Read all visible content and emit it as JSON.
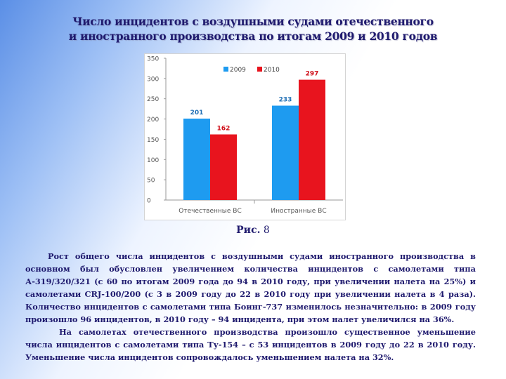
{
  "title": {
    "line1": "Число инцидентов с воздушными судами отечественного",
    "line2": "и иностранного производства по итогам 2009 и 2010 годов"
  },
  "caption": {
    "label": "Рис.",
    "number": "8"
  },
  "paragraphs": [
    "Рост общего числа инцидентов с воздушными судами иностранного производства в основном был обусловлен увеличением количества инцидентов с самолетами типа А-319/320/321 (с 60 по итогам 2009 года до 94 в 2010 году, при увеличении налета на 25%) и самолетами CRJ-100/200 (с 3 в 2009 году до 22 в 2010 году при увеличении налета в 4 раза). Количество инцидентов с самолетами типа Боинг-737 изменилось незначительно: в 2009 году произошло 96 инцидентов, в 2010 году – 94 инцидента, при этом налет увеличился на 36%.",
    "На самолетах отечественного производства произошло существенное уменьшение числа инцидентов с самолетами типа Ту-154 – с 53 инцидентов в 2009 году до 22 в 2010 году. Уменьшение числа инцидентов сопровождалось уменьшением налета на 32%."
  ],
  "chart_data": {
    "type": "bar",
    "categories": [
      "Отечественные ВС",
      "Иностранные ВС"
    ],
    "series": [
      {
        "name": "2009",
        "values": [
          201,
          233
        ],
        "color": "#1e9bf0",
        "label_color": "#1f6fb5"
      },
      {
        "name": "2010",
        "values": [
          162,
          297
        ],
        "color": "#e8141e",
        "label_color": "#d0101a"
      }
    ],
    "ylim": [
      0,
      350
    ],
    "yticks": [
      0,
      50,
      100,
      150,
      200,
      250,
      300,
      350
    ],
    "legend_position": "top-center",
    "grid": false
  }
}
